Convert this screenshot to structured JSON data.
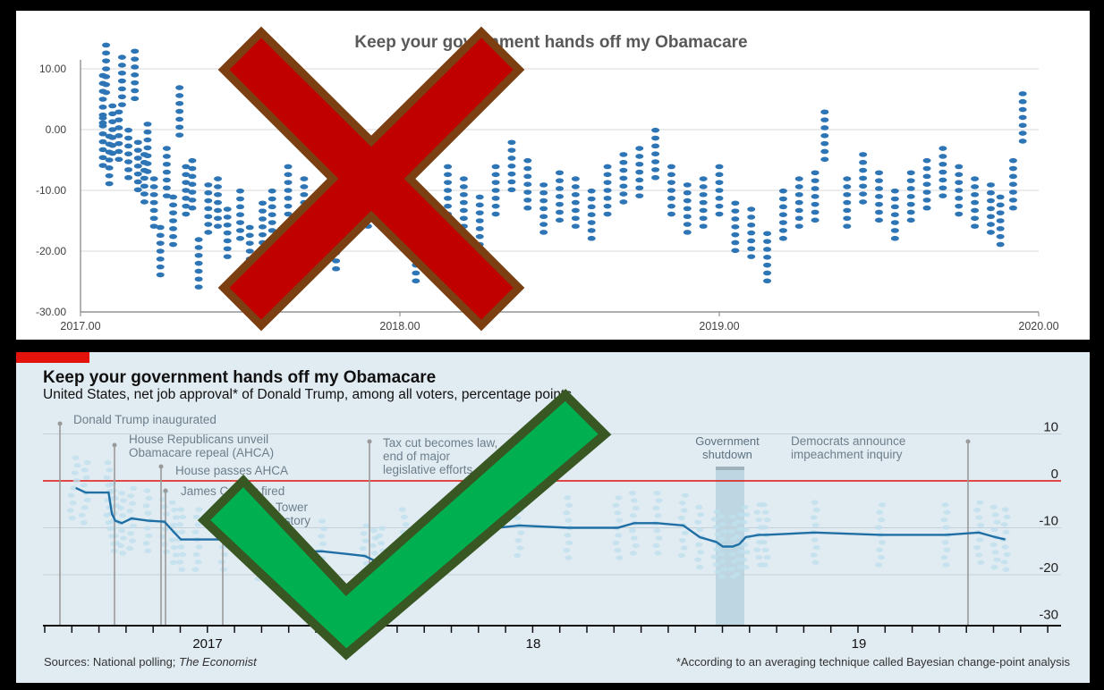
{
  "colors": {
    "excel_dot": "#2e75b6",
    "economist_red": "#e3120b",
    "economist_bg": "#e1ebf2",
    "trend_line": "#1f6fa5",
    "faint_dots": "#bfe0ee",
    "cross_fill": "#c00000",
    "cross_outline": "#7b3f12",
    "check_fill": "#00b050",
    "check_outline": "#385723"
  },
  "icons": {
    "cross": "red-x-cross-icon",
    "check": "green-checkmark-icon"
  },
  "top_chart": {
    "title": "Keep your government hands off my Obamacare",
    "y_ticks": [
      "10.00",
      "0.00",
      "-10.00",
      "-20.00",
      "-30.00"
    ],
    "x_ticks": [
      "2017.00",
      "2018.00",
      "2019.00",
      "2020.00"
    ]
  },
  "bottom_chart": {
    "title": "Keep your government hands off my Obamacare",
    "subtitle": "United States, net job approval* of Donald Trump, among all voters, percentage points",
    "y_ticks": [
      "10",
      "0",
      "-10",
      "-20",
      "-30"
    ],
    "x_ticks": [
      "2017",
      "18",
      "19"
    ],
    "shaded_label": "Government\nshutdown",
    "annotations": [
      "Donald Trump inaugurated",
      "House Republicans unveil\nObamacare repeal (AHCA)",
      "House passes AHCA",
      "James Comey fired",
      "Trump Tower\nmeeting story",
      "Tax cut becomes law,\nend of major\nlegislative efforts",
      "Democrats announce\nimpeachment inquiry"
    ],
    "source": "Sources: National polling; ",
    "source_italic": "The Economist",
    "footnote": "*According to an averaging technique  called Bayesian change-point analysis"
  },
  "chart_data": [
    {
      "type": "scatter",
      "title": "Keep your government hands off my Obamacare",
      "xlim": [
        2017,
        2020
      ],
      "ylim": [
        -30,
        10
      ],
      "x": [
        2017.07,
        2017.07,
        2017.08,
        2017.09,
        2017.1,
        2017.12,
        2017.13,
        2017.15,
        2017.17,
        2017.18,
        2017.2,
        2017.21,
        2017.23,
        2017.25,
        2017.27,
        2017.29,
        2017.31,
        2017.33,
        2017.35,
        2017.37,
        2017.4,
        2017.43,
        2017.46,
        2017.5,
        2017.53,
        2017.57,
        2017.6,
        2017.65,
        2017.7,
        2017.75,
        2017.8,
        2017.85,
        2017.9,
        2017.95,
        2018.0,
        2018.05,
        2018.1,
        2018.15,
        2018.2,
        2018.25,
        2018.3,
        2018.35,
        2018.4,
        2018.45,
        2018.5,
        2018.55,
        2018.6,
        2018.65,
        2018.7,
        2018.75,
        2018.8,
        2018.85,
        2018.9,
        2018.95,
        2019.0,
        2019.05,
        2019.1,
        2019.15,
        2019.2,
        2019.25,
        2019.3,
        2019.33,
        2019.4,
        2019.45,
        2019.5,
        2019.55,
        2019.6,
        2019.65,
        2019.7,
        2019.75,
        2019.8,
        2019.85,
        2019.88,
        2019.92,
        2019.95
      ],
      "y": [
        5,
        -2,
        10,
        -5,
        0,
        -1,
        8,
        -4,
        9,
        -6,
        -8,
        -3,
        -12,
        -20,
        -7,
        -15,
        3,
        -10,
        -9,
        -22,
        -13,
        -12,
        -17,
        -14,
        -20,
        -16,
        -14,
        -10,
        -12,
        -16,
        -19,
        -13,
        -12,
        -11,
        -15,
        -21,
        -17,
        -10,
        -12,
        -15,
        -10,
        -6,
        -9,
        -13,
        -11,
        -12,
        -14,
        -10,
        -8,
        -7,
        -4,
        -10,
        -13,
        -12,
        -10,
        -16,
        -17,
        -21,
        -14,
        -12,
        -11,
        -1,
        -12,
        -8,
        -11,
        -14,
        -11,
        -9,
        -7,
        -10,
        -12,
        -13,
        -15,
        -9,
        2
      ],
      "xlabel": "",
      "ylabel": "",
      "grid": true
    },
    {
      "type": "line",
      "title": "Keep your government hands off my Obamacare",
      "subtitle": "United States, net job approval* of Donald Trump, among all voters, percentage points",
      "ylim": [
        -30,
        10
      ],
      "x": [
        2017.05,
        2017.08,
        2017.15,
        2017.16,
        2017.17,
        2017.19,
        2017.22,
        2017.27,
        2017.32,
        2017.35,
        2017.37,
        2017.42,
        2017.5,
        2017.6,
        2017.7,
        2017.8,
        2017.93,
        2017.96,
        2017.98,
        2018.05,
        2018.2,
        2018.4,
        2018.55,
        2018.7,
        2018.75,
        2018.82,
        2018.9,
        2018.95,
        2019.0,
        2019.02,
        2019.05,
        2019.07,
        2019.09,
        2019.13,
        2019.15,
        2019.3,
        2019.5,
        2019.7,
        2019.8,
        2019.85,
        2019.88
      ],
      "y": [
        -1.5,
        -2.5,
        -2.5,
        -7,
        -8.5,
        -9,
        -8,
        -8.5,
        -8.7,
        -11,
        -12.5,
        -12.5,
        -12.5,
        -14.5,
        -15,
        -15,
        -16,
        -17,
        -16.5,
        -12.5,
        -11,
        -9.5,
        -10,
        -10,
        -9,
        -9,
        -9.5,
        -12,
        -13,
        -14,
        -14,
        -13.5,
        -12,
        -11.5,
        -11.5,
        -11,
        -11.5,
        -11.5,
        -11,
        -12,
        -12.5
      ],
      "xlabel": "",
      "ylabel": "",
      "grid": true
    }
  ]
}
